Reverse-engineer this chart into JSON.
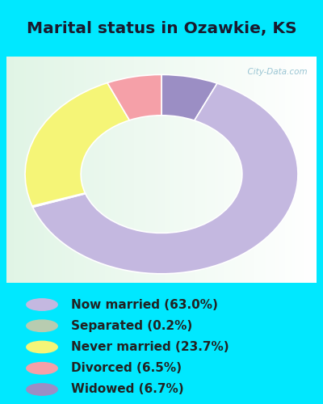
{
  "title": "Marital status in Ozawkie, KS",
  "slices": [
    63.0,
    0.2,
    23.7,
    6.5,
    6.7
  ],
  "labels": [
    "Now married (63.0%)",
    "Separated (0.2%)",
    "Never married (23.7%)",
    "Divorced (6.5%)",
    "Widowed (6.7%)"
  ],
  "colors": [
    "#c4b8e0",
    "#a8c5a0",
    "#f5f577",
    "#f5a0a8",
    "#9b8ec4"
  ],
  "legend_dot_colors": [
    "#c4b8e0",
    "#b8ccb0",
    "#f5f577",
    "#f5a0a8",
    "#9b8ec4"
  ],
  "bg_cyan": "#00e8ff",
  "bg_chart_color": "#e0f0e8",
  "title_color": "#1a1a2e",
  "legend_text_color": "#222222",
  "title_fontsize": 14.5,
  "legend_fontsize": 11,
  "watermark": "  City-Data.com",
  "donut_order": [
    4,
    0,
    1,
    2,
    3
  ],
  "start_angle": 90
}
